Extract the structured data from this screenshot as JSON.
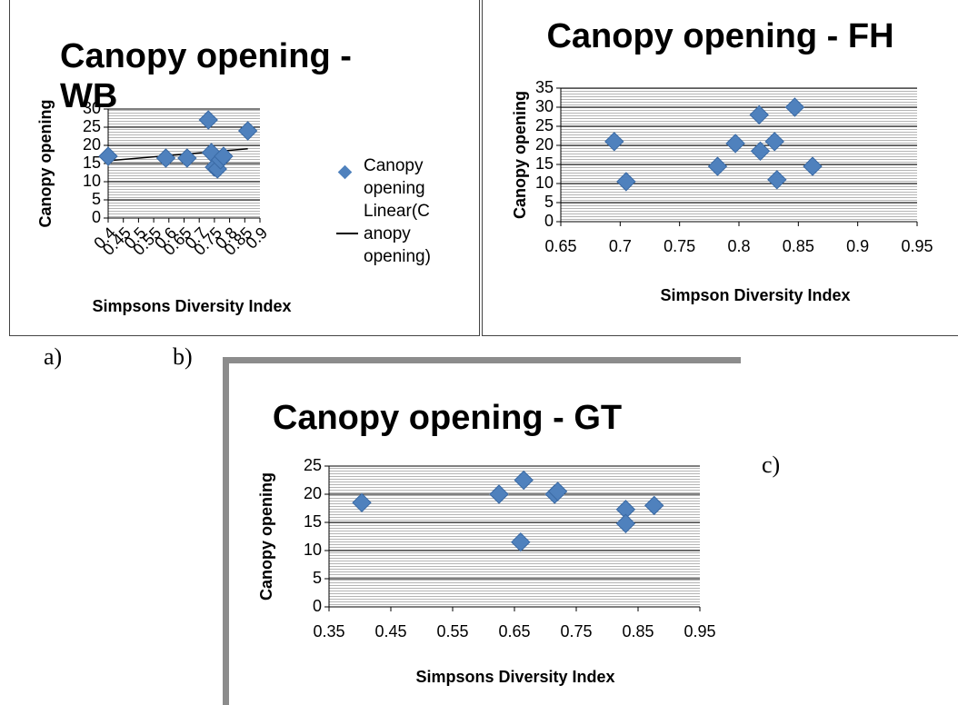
{
  "panel_labels": [
    "a)",
    "b)",
    "c)"
  ],
  "chart_data": [
    {
      "type": "scatter",
      "title": "Canopy opening - WB",
      "xlabel": "Simpsons Diversity Index",
      "ylabel": "Canopy opening",
      "series": [
        {
          "name": "Canopy opening",
          "color": "#4f81bd",
          "x": [
            0.4,
            0.59,
            0.66,
            0.73,
            0.74,
            0.75,
            0.76,
            0.77,
            0.78,
            0.86
          ],
          "values": [
            17,
            16.5,
            16.5,
            27,
            18,
            14,
            13.5,
            16,
            17,
            24
          ]
        }
      ],
      "trendline": "Linear(Canopy opening)",
      "legend": "right",
      "grid": true,
      "xlim": [
        0.4,
        0.9
      ],
      "xticks": [
        0.4,
        0.45,
        0.5,
        0.55,
        0.6,
        0.65,
        0.7,
        0.75,
        0.8,
        0.85,
        0.9
      ],
      "ylim": [
        0,
        30
      ],
      "yticks": [
        0,
        5,
        10,
        15,
        20,
        25,
        30
      ]
    },
    {
      "type": "scatter",
      "title": "Canopy opening - FH",
      "xlabel": "Simpson Diversity Index",
      "ylabel": "Canopy opening",
      "series": [
        {
          "color": "#4f81bd",
          "x": [
            0.695,
            0.705,
            0.782,
            0.797,
            0.817,
            0.818,
            0.83,
            0.832,
            0.847,
            0.862
          ],
          "values": [
            21,
            10.5,
            14.5,
            20.5,
            28,
            18.5,
            21,
            11,
            30,
            14.5
          ]
        }
      ],
      "grid": true,
      "xlim": [
        0.65,
        0.95
      ],
      "xticks": [
        0.65,
        0.7,
        0.75,
        0.8,
        0.85,
        0.9,
        0.95
      ],
      "ylim": [
        0,
        35
      ],
      "yticks": [
        0,
        5,
        10,
        15,
        20,
        25,
        30,
        35
      ]
    },
    {
      "type": "scatter",
      "title": "Canopy opening - GT",
      "xlabel": "Simpsons Diversity Index",
      "ylabel": "Canopy opening",
      "series": [
        {
          "color": "#4f81bd",
          "x": [
            0.403,
            0.625,
            0.66,
            0.665,
            0.715,
            0.72,
            0.83,
            0.83,
            0.876
          ],
          "values": [
            18.5,
            20,
            11.5,
            22.5,
            20,
            20.5,
            17.3,
            14.8,
            18
          ]
        }
      ],
      "grid": true,
      "xlim": [
        0.35,
        0.95
      ],
      "xticks": [
        0.35,
        0.45,
        0.55,
        0.65,
        0.75,
        0.85,
        0.95
      ],
      "ylim": [
        0,
        25
      ],
      "yticks": [
        0,
        5,
        10,
        15,
        20,
        25
      ]
    }
  ]
}
